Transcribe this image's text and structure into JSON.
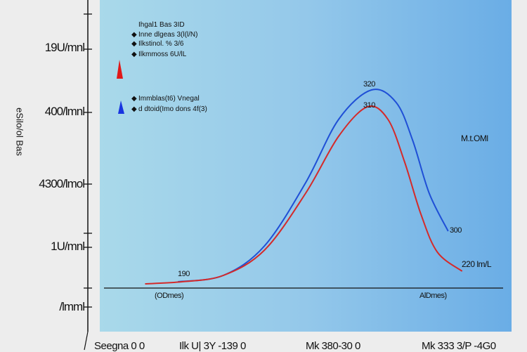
{
  "chart_data": {
    "type": "line",
    "title": "",
    "ylabel": "eSilo/ol Bas",
    "xlim": [
      0,
      100
    ],
    "ylim": [
      0,
      100
    ],
    "y_tick_labels": [
      "19U/mnl",
      "400/lmnl",
      "4300/lmol",
      "1U/mnl",
      "/lmml"
    ],
    "x_tick_labels": [
      "Seegna 0 0",
      "Ilk U| 3Y -139 0",
      "Mk 380-30 0",
      "Mk 333 3/P -4G0"
    ],
    "series": [
      {
        "name": "blue",
        "color": "#1f4fd6",
        "points": [
          [
            19,
            3
          ],
          [
            30,
            6
          ],
          [
            40,
            20
          ],
          [
            50,
            50
          ],
          [
            58,
            80
          ],
          [
            66,
            94
          ],
          [
            72,
            88
          ],
          [
            76,
            70
          ],
          [
            80,
            45
          ],
          [
            84.6,
            27
          ]
        ]
      },
      {
        "name": "red",
        "color": "#d42a2a",
        "points": [
          [
            11,
            2
          ],
          [
            20,
            3
          ],
          [
            30,
            6
          ],
          [
            40,
            18
          ],
          [
            50,
            45
          ],
          [
            58,
            72
          ],
          [
            65,
            86
          ],
          [
            70,
            80
          ],
          [
            74,
            60
          ],
          [
            78,
            35
          ],
          [
            82,
            17
          ],
          [
            88,
            8
          ]
        ]
      }
    ],
    "annotations": {
      "blue_start": "190",
      "blue_peak": "320",
      "red_peak": "310",
      "blue_end": "300",
      "red_end": "220 lm/L",
      "right_label": "M.t.OMl",
      "baseline_left": "(ODmes)",
      "baseline_right": "AlDmes)"
    },
    "legend": {
      "red_group": [
        "Ihgal1 Bas 3ID",
        "Inne dlgeas 3(l(l/N)",
        "Ilkstinol. % 3/6",
        "Ilkmmoss 6U/lL"
      ],
      "blue_group": [
        "Immblas(t6) Vnegal",
        "d dtoid(Imo dons 4f(3)"
      ],
      "placement": "top-left"
    }
  }
}
